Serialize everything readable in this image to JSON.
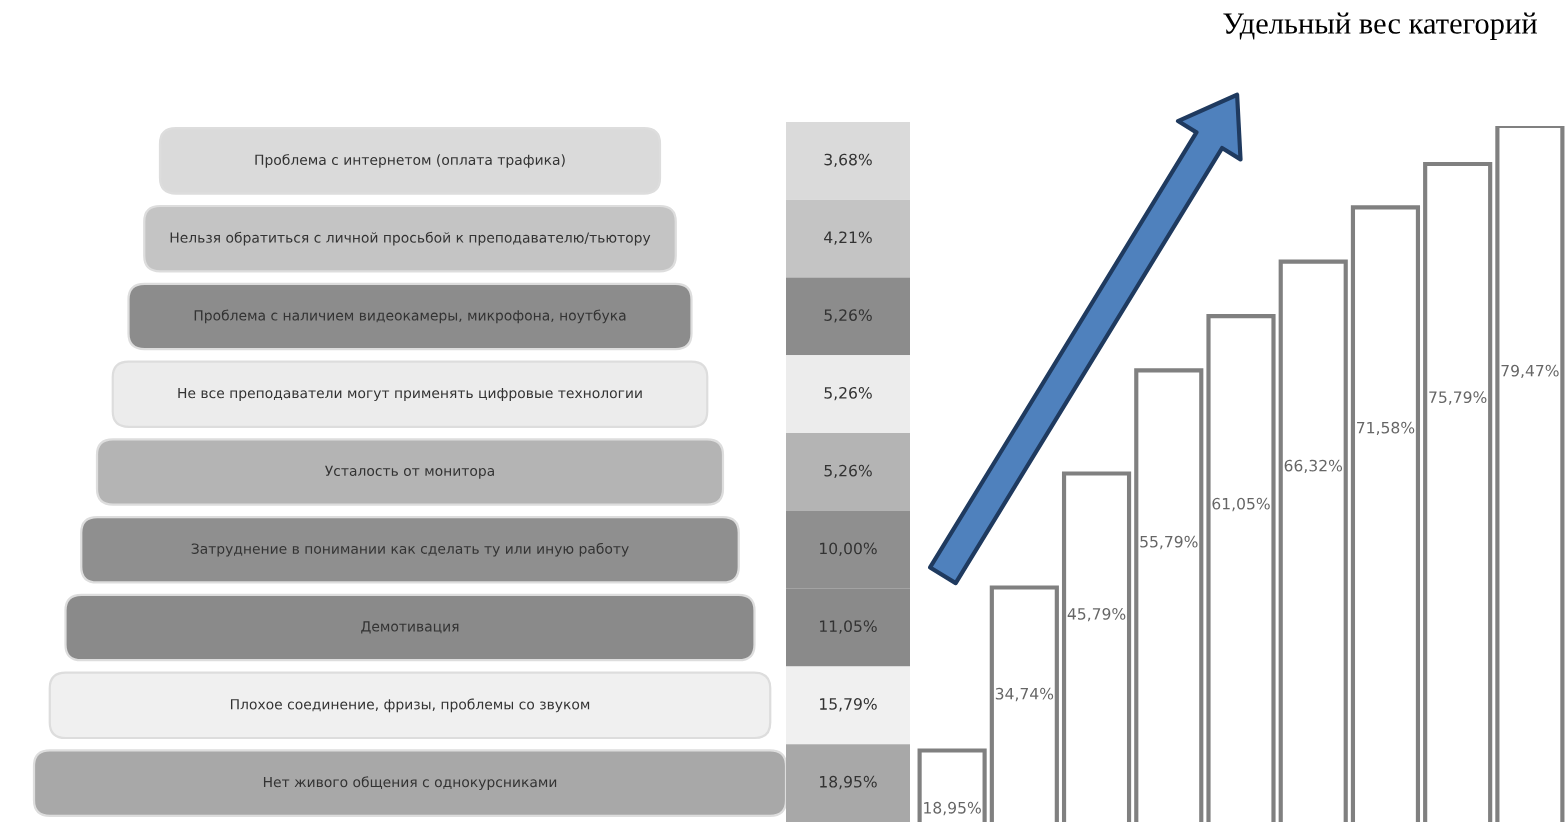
{
  "chart_data": [
    {
      "type": "other",
      "categories": [
        "Проблема с интернетом (оплата трафика)",
        "Нельзя обратиться с личной просьбой к преподавателю/тьютору",
        "Проблема с наличием видеокамеры, микрофона, ноутбука",
        "Не все преподаватели могут применять цифровые технологии",
        "Усталость от монитора",
        "Затруднение в понимании как сделать ту или иную работу",
        "Демотивация",
        "Плохое соединение, фризы, проблемы со звуком",
        "Нет живого общения с однокурсниками"
      ],
      "values": [
        3.68,
        4.21,
        5.26,
        5.26,
        5.26,
        10.0,
        11.05,
        15.79,
        18.95
      ],
      "value_labels": [
        "3,68%",
        "4,21%",
        "5,26%",
        "5,26%",
        "5,26%",
        "10,00%",
        "11,05%",
        "15,79%",
        "18,95%"
      ],
      "colors": [
        "#dadada",
        "#c4c4c4",
        "#8c8c8c",
        "#ececec",
        "#b4b4b4",
        "#8f8f8f",
        "#8a8a8a",
        "#f0f0f0",
        "#a8a8a8"
      ]
    },
    {
      "type": "bar",
      "categories": [
        null,
        null,
        null,
        null,
        null,
        null,
        null,
        null,
        null
      ],
      "values": [
        18.95,
        34.74,
        45.79,
        55.79,
        61.05,
        66.32,
        71.58,
        75.79,
        79.47
      ],
      "value_labels": [
        "18,95%",
        "34,74%",
        "45,79%",
        "55,79%",
        "61,05%",
        "66,32%",
        "71,58%",
        "75,79%",
        "79,47%"
      ],
      "color": "#ffffff",
      "annotations": [
        "Удельный вес категорий"
      ]
    }
  ]
}
